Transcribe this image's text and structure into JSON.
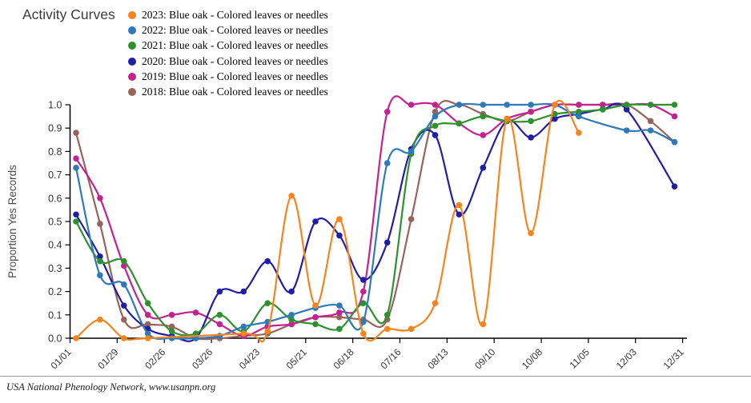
{
  "title": "Activity Curves",
  "footer": {
    "text": "USA National Phenology Network, www.usanpn.org"
  },
  "chart_data": {
    "type": "line",
    "title": "Activity Curves",
    "xlabel": "",
    "ylabel": "Proportion Yes Records",
    "ylim": [
      0.0,
      1.0
    ],
    "grid": false,
    "legend_position": "top-left",
    "marker": "circle",
    "x_tick_labels": [
      "01/01",
      "01/29",
      "02/26",
      "03/26",
      "04/23",
      "05/21",
      "06/18",
      "07/16",
      "08/13",
      "09/10",
      "10/08",
      "11/05",
      "12/03",
      "12/31"
    ],
    "y_tick_labels": [
      "0.0",
      "0.1",
      "0.2",
      "0.3",
      "0.4",
      "0.5",
      "0.6",
      "0.7",
      "0.8",
      "0.9",
      "1.0"
    ],
    "point_dates": [
      "01/04",
      "01/18",
      "02/01",
      "02/15",
      "03/01",
      "03/15",
      "03/29",
      "04/12",
      "04/26",
      "05/10",
      "05/24",
      "06/07",
      "06/21",
      "07/05",
      "07/19",
      "08/02",
      "08/16",
      "08/30",
      "09/13",
      "09/27",
      "10/11",
      "10/25",
      "11/08",
      "11/22",
      "12/06",
      "12/20"
    ],
    "series": [
      {
        "name": "2023: Blue oak - Colored leaves or needles",
        "year": "2023",
        "color": "#F5841F",
        "values": [
          0.0,
          0.08,
          0.0,
          0.0,
          null,
          null,
          null,
          0.02,
          0.03,
          0.61,
          0.14,
          0.51,
          0.02,
          0.04,
          0.04,
          0.15,
          0.57,
          0.06,
          0.94,
          0.45,
          1.0,
          0.88,
          null,
          null,
          null,
          null
        ]
      },
      {
        "name": "2022: Blue oak - Colored leaves or needles",
        "year": "2022",
        "color": "#2E79B9",
        "values": [
          0.73,
          0.27,
          0.23,
          0.02,
          0.0,
          0.0,
          0.01,
          0.05,
          0.07,
          0.1,
          0.13,
          0.14,
          0.07,
          0.75,
          0.8,
          0.95,
          1.0,
          1.0,
          1.0,
          1.0,
          1.0,
          0.95,
          null,
          0.89,
          0.89,
          0.84
        ]
      },
      {
        "name": "2021: Blue oak - Colored leaves or needles",
        "year": "2021",
        "color": "#2D9130",
        "values": [
          0.5,
          0.33,
          0.33,
          0.15,
          0.03,
          0.02,
          0.1,
          0.03,
          0.15,
          0.08,
          0.06,
          0.04,
          0.15,
          0.1,
          0.79,
          0.91,
          0.92,
          0.95,
          0.93,
          0.93,
          0.96,
          0.97,
          0.98,
          1.0,
          1.0,
          1.0
        ]
      },
      {
        "name": "2020: Blue oak - Colored leaves or needles",
        "year": "2020",
        "color": "#211DA5",
        "values": [
          0.53,
          0.35,
          0.14,
          0.04,
          0.01,
          0.0,
          0.2,
          0.2,
          0.33,
          0.2,
          0.5,
          0.44,
          0.25,
          0.41,
          0.81,
          0.87,
          0.53,
          0.73,
          0.93,
          0.86,
          0.94,
          0.96,
          0.98,
          0.98,
          null,
          0.65
        ]
      },
      {
        "name": "2019: Blue oak - Colored leaves or needles",
        "year": "2019",
        "color": "#C32290",
        "values": [
          0.77,
          0.6,
          0.31,
          0.1,
          0.1,
          0.11,
          0.06,
          0.01,
          0.05,
          0.06,
          0.09,
          0.11,
          0.2,
          0.97,
          1.0,
          1.0,
          0.92,
          0.87,
          0.94,
          0.97,
          1.0,
          1.0,
          1.0,
          1.0,
          1.0,
          0.95
        ]
      },
      {
        "name": "2018: Blue oak - Colored leaves or needles",
        "year": "2018",
        "color": "#97645B",
        "values": [
          0.88,
          0.49,
          0.08,
          0.06,
          0.05,
          0.0,
          0.0,
          0.01,
          0.02,
          0.06,
          0.09,
          0.09,
          0.08,
          0.08,
          0.51,
          0.97,
          1.0,
          0.96,
          0.93,
          0.97,
          1.0,
          1.0,
          1.0,
          1.0,
          0.93,
          0.84
        ]
      }
    ]
  },
  "style": {
    "axis_color": "#000000",
    "tick_label_color": "#333333",
    "ylabel_color": "#4a4a4a"
  }
}
